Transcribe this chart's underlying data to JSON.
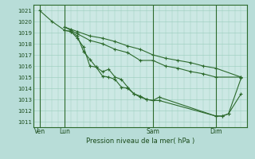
{
  "background_color": "#b8ddd8",
  "plot_bg_color": "#cce8e4",
  "grid_color": "#99ccbb",
  "line_color": "#2d6a2d",
  "vline_color": "#2d6a2d",
  "xlabel": "Pression niveau de la mer( hPa )",
  "ylabel_ticks": [
    1011,
    1012,
    1013,
    1014,
    1015,
    1016,
    1017,
    1018,
    1019,
    1020,
    1021
  ],
  "ylim": [
    1010.5,
    1021.5
  ],
  "xtick_labels": [
    "Ven",
    "Lun",
    "Sam",
    "Dim"
  ],
  "xtick_positions": [
    0,
    2,
    9,
    14
  ],
  "vline_positions": [
    0,
    2,
    9,
    14
  ],
  "xlim": [
    -0.5,
    16.5
  ],
  "lines": [
    [
      0,
      1021.0,
      1,
      1020.0,
      2,
      1019.2,
      2.5,
      1019.1,
      3,
      1018.7,
      3.5,
      1017.3,
      4,
      1016.6,
      4.5,
      1015.9,
      5,
      1015.1,
      5.5,
      1015.0,
      6,
      1014.8,
      6.5,
      1014.1,
      7,
      1014.0,
      7.5,
      1013.5,
      8,
      1013.2,
      8.5,
      1013.0,
      9,
      1012.9,
      9.5,
      1013.2,
      14,
      1011.5,
      14.5,
      1011.5,
      15,
      1011.7,
      16,
      1013.5
    ],
    [
      2,
      1019.2,
      2.5,
      1019.1,
      3,
      1018.5,
      3.5,
      1017.7,
      4,
      1016.0,
      4.5,
      1015.9,
      5,
      1015.5,
      5.5,
      1015.7,
      6,
      1015.0,
      6.5,
      1014.8,
      7,
      1014.1,
      7.5,
      1013.5,
      8,
      1013.3,
      8.5,
      1013.0,
      9,
      1012.9,
      9.5,
      1012.9,
      14,
      1011.5,
      14.5,
      1011.5,
      15,
      1011.7,
      16,
      1014.9
    ],
    [
      2,
      1019.5,
      2.5,
      1019.2,
      3,
      1018.9,
      4,
      1018.3,
      5,
      1018.0,
      6,
      1017.5,
      7,
      1017.2,
      8,
      1016.5,
      9,
      1016.5,
      10,
      1016.0,
      11,
      1015.8,
      12,
      1015.5,
      13,
      1015.3,
      14,
      1015.0,
      16,
      1015.0
    ],
    [
      2,
      1019.5,
      2.5,
      1019.3,
      3,
      1019.1,
      4,
      1018.7,
      5,
      1018.5,
      6,
      1018.2,
      7,
      1017.8,
      8,
      1017.5,
      9,
      1017.0,
      10,
      1016.7,
      11,
      1016.5,
      12,
      1016.3,
      13,
      1016.0,
      14,
      1015.8,
      16,
      1015.0
    ]
  ],
  "marker": "+",
  "markersize": 3,
  "linewidth": 0.8
}
